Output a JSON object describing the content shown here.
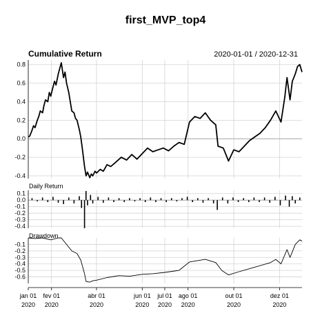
{
  "chart_data": {
    "type": "line",
    "title": "first_MVP_top4",
    "subtitle": "Cumulative Return",
    "date_range": "2020-01-01 / 2020-12-31",
    "x_start": "2020-01-01",
    "x_end": "2020-12-31",
    "x_ticks": [
      {
        "date": "2020-01-01",
        "label": "jan 01",
        "year": "2020"
      },
      {
        "date": "2020-02-01",
        "label": "fev 01",
        "year": "2020"
      },
      {
        "date": "2020-04-01",
        "label": "abr 01",
        "year": "2020"
      },
      {
        "date": "2020-06-01",
        "label": "jun 01",
        "year": "2020"
      },
      {
        "date": "2020-07-01",
        "label": "jul 01",
        "year": "2020"
      },
      {
        "date": "2020-08-01",
        "label": "ago 01",
        "year": "2020"
      },
      {
        "date": "2020-10-01",
        "label": "out 01",
        "year": "2020"
      },
      {
        "date": "2020-12-01",
        "label": "dez 01",
        "year": "2020"
      }
    ],
    "panels": [
      {
        "name": "Cumulative Return",
        "ylim": [
          -0.43,
          0.85
        ],
        "y_ticks": [
          "0.8",
          "0.6",
          "0.4",
          "0.2",
          "0.0",
          "-0.2",
          "-0.4"
        ],
        "y_values": [
          0.8,
          0.6,
          0.4,
          0.2,
          0.0,
          -0.2,
          -0.4
        ],
        "baseline": 0.0,
        "points": [
          [
            "2020-01-01",
            0.02
          ],
          [
            "2020-01-03",
            0.03
          ],
          [
            "2020-01-06",
            0.09
          ],
          [
            "2020-01-08",
            0.14
          ],
          [
            "2020-01-10",
            0.12
          ],
          [
            "2020-01-13",
            0.2
          ],
          [
            "2020-01-15",
            0.24
          ],
          [
            "2020-01-17",
            0.3
          ],
          [
            "2020-01-20",
            0.28
          ],
          [
            "2020-01-22",
            0.36
          ],
          [
            "2020-01-24",
            0.42
          ],
          [
            "2020-01-27",
            0.4
          ],
          [
            "2020-01-29",
            0.5
          ],
          [
            "2020-01-31",
            0.46
          ],
          [
            "2020-02-03",
            0.56
          ],
          [
            "2020-02-05",
            0.62
          ],
          [
            "2020-02-07",
            0.58
          ],
          [
            "2020-02-10",
            0.7
          ],
          [
            "2020-02-12",
            0.76
          ],
          [
            "2020-02-14",
            0.82
          ],
          [
            "2020-02-17",
            0.66
          ],
          [
            "2020-02-19",
            0.72
          ],
          [
            "2020-02-21",
            0.6
          ],
          [
            "2020-02-24",
            0.5
          ],
          [
            "2020-02-26",
            0.4
          ],
          [
            "2020-02-28",
            0.3
          ],
          [
            "2020-03-02",
            0.28
          ],
          [
            "2020-03-04",
            0.22
          ],
          [
            "2020-03-06",
            0.2
          ],
          [
            "2020-03-09",
            0.1
          ],
          [
            "2020-03-11",
            0.02
          ],
          [
            "2020-03-13",
            -0.1
          ],
          [
            "2020-03-16",
            -0.3
          ],
          [
            "2020-03-18",
            -0.4
          ],
          [
            "2020-03-20",
            -0.36
          ],
          [
            "2020-03-23",
            -0.42
          ],
          [
            "2020-03-25",
            -0.38
          ],
          [
            "2020-03-27",
            -0.4
          ],
          [
            "2020-03-30",
            -0.35
          ],
          [
            "2020-04-01",
            -0.37
          ],
          [
            "2020-04-06",
            -0.33
          ],
          [
            "2020-04-10",
            -0.35
          ],
          [
            "2020-04-15",
            -0.28
          ],
          [
            "2020-04-20",
            -0.3
          ],
          [
            "2020-04-27",
            -0.25
          ],
          [
            "2020-05-04",
            -0.2
          ],
          [
            "2020-05-11",
            -0.23
          ],
          [
            "2020-05-18",
            -0.17
          ],
          [
            "2020-05-25",
            -0.22
          ],
          [
            "2020-06-01",
            -0.16
          ],
          [
            "2020-06-08",
            -0.1
          ],
          [
            "2020-06-15",
            -0.14
          ],
          [
            "2020-06-22",
            -0.12
          ],
          [
            "2020-06-29",
            -0.1
          ],
          [
            "2020-07-06",
            -0.13
          ],
          [
            "2020-07-13",
            -0.08
          ],
          [
            "2020-07-20",
            -0.04
          ],
          [
            "2020-07-27",
            -0.06
          ],
          [
            "2020-08-03",
            0.18
          ],
          [
            "2020-08-10",
            0.24
          ],
          [
            "2020-08-17",
            0.22
          ],
          [
            "2020-08-24",
            0.28
          ],
          [
            "2020-08-31",
            0.2
          ],
          [
            "2020-09-07",
            0.15
          ],
          [
            "2020-09-10",
            -0.08
          ],
          [
            "2020-09-17",
            -0.1
          ],
          [
            "2020-09-24",
            -0.24
          ],
          [
            "2020-10-01",
            -0.12
          ],
          [
            "2020-10-08",
            -0.14
          ],
          [
            "2020-10-15",
            -0.08
          ],
          [
            "2020-10-22",
            -0.02
          ],
          [
            "2020-10-29",
            0.02
          ],
          [
            "2020-11-05",
            0.06
          ],
          [
            "2020-11-12",
            0.12
          ],
          [
            "2020-11-19",
            0.2
          ],
          [
            "2020-11-26",
            0.3
          ],
          [
            "2020-12-03",
            0.18
          ],
          [
            "2020-12-08",
            0.45
          ],
          [
            "2020-12-11",
            0.66
          ],
          [
            "2020-12-15",
            0.42
          ],
          [
            "2020-12-18",
            0.62
          ],
          [
            "2020-12-22",
            0.7
          ],
          [
            "2020-12-25",
            0.78
          ],
          [
            "2020-12-28",
            0.8
          ],
          [
            "2020-12-31",
            0.72
          ]
        ]
      },
      {
        "name": "Daily Return",
        "ylim": [
          -0.43,
          0.15
        ],
        "y_ticks": [
          "0.1",
          "0.0",
          "-0.1",
          "-0.2",
          "-0.3",
          "-0.4"
        ],
        "y_values": [
          0.1,
          0.0,
          -0.1,
          -0.2,
          -0.3,
          -0.4
        ],
        "baseline": 0.0,
        "bars": [
          [
            "2020-01-06",
            0.03
          ],
          [
            "2020-01-13",
            -0.02
          ],
          [
            "2020-01-20",
            0.04
          ],
          [
            "2020-01-27",
            -0.03
          ],
          [
            "2020-02-03",
            0.05
          ],
          [
            "2020-02-10",
            -0.04
          ],
          [
            "2020-02-17",
            -0.06
          ],
          [
            "2020-02-24",
            0.04
          ],
          [
            "2020-03-02",
            -0.05
          ],
          [
            "2020-03-09",
            0.06
          ],
          [
            "2020-03-12",
            -0.12
          ],
          [
            "2020-03-16",
            -0.43
          ],
          [
            "2020-03-18",
            0.14
          ],
          [
            "2020-03-20",
            -0.08
          ],
          [
            "2020-03-24",
            0.08
          ],
          [
            "2020-03-27",
            -0.05
          ],
          [
            "2020-04-03",
            0.05
          ],
          [
            "2020-04-10",
            -0.04
          ],
          [
            "2020-04-17",
            0.04
          ],
          [
            "2020-04-24",
            -0.03
          ],
          [
            "2020-05-01",
            0.03
          ],
          [
            "2020-05-08",
            -0.03
          ],
          [
            "2020-05-15",
            0.03
          ],
          [
            "2020-05-22",
            -0.02
          ],
          [
            "2020-05-29",
            0.03
          ],
          [
            "2020-06-05",
            -0.03
          ],
          [
            "2020-06-12",
            0.04
          ],
          [
            "2020-06-19",
            -0.03
          ],
          [
            "2020-06-26",
            0.03
          ],
          [
            "2020-07-03",
            -0.03
          ],
          [
            "2020-07-10",
            0.03
          ],
          [
            "2020-07-17",
            -0.02
          ],
          [
            "2020-07-24",
            0.03
          ],
          [
            "2020-07-31",
            0.05
          ],
          [
            "2020-08-07",
            -0.03
          ],
          [
            "2020-08-14",
            0.03
          ],
          [
            "2020-08-21",
            -0.04
          ],
          [
            "2020-08-28",
            0.03
          ],
          [
            "2020-09-04",
            -0.05
          ],
          [
            "2020-09-09",
            -0.15
          ],
          [
            "2020-09-16",
            0.04
          ],
          [
            "2020-09-23",
            -0.05
          ],
          [
            "2020-09-30",
            0.04
          ],
          [
            "2020-10-07",
            -0.03
          ],
          [
            "2020-10-14",
            0.03
          ],
          [
            "2020-10-21",
            -0.03
          ],
          [
            "2020-10-28",
            0.04
          ],
          [
            "2020-11-04",
            -0.03
          ],
          [
            "2020-11-11",
            0.04
          ],
          [
            "2020-11-18",
            -0.04
          ],
          [
            "2020-11-25",
            0.05
          ],
          [
            "2020-12-02",
            -0.08
          ],
          [
            "2020-12-09",
            0.07
          ],
          [
            "2020-12-14",
            -0.1
          ],
          [
            "2020-12-18",
            0.06
          ],
          [
            "2020-12-22",
            -0.05
          ],
          [
            "2020-12-28",
            0.04
          ]
        ]
      },
      {
        "name": "Drawdown",
        "ylim": [
          -0.7,
          0.0
        ],
        "y_ticks": [
          "-0.1",
          "-0.2",
          "-0.3",
          "-0.4",
          "-0.5",
          "-0.6"
        ],
        "y_values": [
          -0.1,
          -0.2,
          -0.3,
          -0.4,
          -0.5,
          -0.6
        ],
        "points": [
          [
            "2020-01-01",
            0.0
          ],
          [
            "2020-01-10",
            -0.01
          ],
          [
            "2020-01-20",
            0.0
          ],
          [
            "2020-01-31",
            -0.03
          ],
          [
            "2020-02-10",
            0.0
          ],
          [
            "2020-02-14",
            0.0
          ],
          [
            "2020-02-21",
            -0.1
          ],
          [
            "2020-02-28",
            -0.2
          ],
          [
            "2020-03-06",
            -0.24
          ],
          [
            "2020-03-11",
            -0.34
          ],
          [
            "2020-03-16",
            -0.55
          ],
          [
            "2020-03-18",
            -0.67
          ],
          [
            "2020-03-23",
            -0.68
          ],
          [
            "2020-03-27",
            -0.66
          ],
          [
            "2020-04-01",
            -0.65
          ],
          [
            "2020-04-15",
            -0.61
          ],
          [
            "2020-05-01",
            -0.58
          ],
          [
            "2020-05-15",
            -0.59
          ],
          [
            "2020-06-01",
            -0.56
          ],
          [
            "2020-06-15",
            -0.55
          ],
          [
            "2020-07-01",
            -0.53
          ],
          [
            "2020-07-20",
            -0.5
          ],
          [
            "2020-08-03",
            -0.37
          ],
          [
            "2020-08-24",
            -0.33
          ],
          [
            "2020-09-07",
            -0.38
          ],
          [
            "2020-09-15",
            -0.5
          ],
          [
            "2020-09-24",
            -0.57
          ],
          [
            "2020-10-08",
            -0.52
          ],
          [
            "2020-10-29",
            -0.45
          ],
          [
            "2020-11-19",
            -0.38
          ],
          [
            "2020-11-26",
            -0.33
          ],
          [
            "2020-12-03",
            -0.4
          ],
          [
            "2020-12-11",
            -0.18
          ],
          [
            "2020-12-15",
            -0.3
          ],
          [
            "2020-12-22",
            -0.1
          ],
          [
            "2020-12-28",
            -0.03
          ],
          [
            "2020-12-31",
            -0.05
          ]
        ]
      }
    ],
    "colors": {
      "line": "#000000",
      "grid": "#d3d3d3",
      "baseline": "#a9a9a9",
      "axis": "#000000"
    }
  }
}
